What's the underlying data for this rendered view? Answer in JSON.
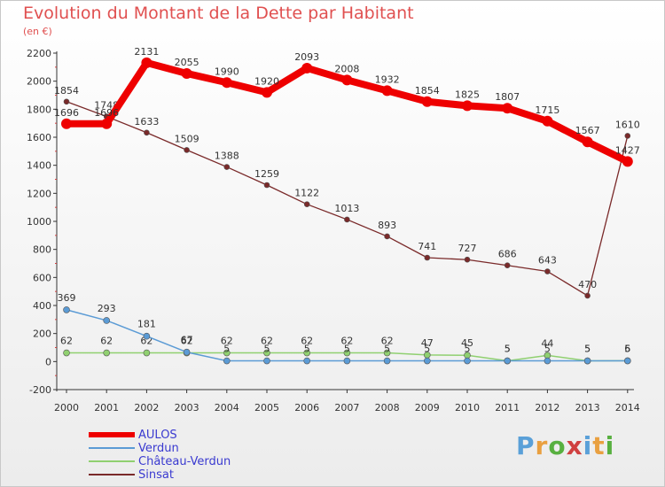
{
  "header": {
    "title": "Evolution du Montant de la Dette par Habitant",
    "subtitle": "(en €)"
  },
  "logo": {
    "text": "Proxiti",
    "colors": [
      "#5aa0d8",
      "#e9a040",
      "#58b040",
      "#d04040",
      "#5aa0d8",
      "#e9a040",
      "#58b040"
    ]
  },
  "chart_data": {
    "type": "line",
    "x": [
      "2000",
      "2001",
      "2002",
      "2003",
      "2004",
      "2005",
      "2006",
      "2007",
      "2008",
      "2009",
      "2010",
      "2011",
      "2012",
      "2013",
      "2014"
    ],
    "ylim": [
      -200,
      2200
    ],
    "yticks": [
      "-200",
      "0",
      "200",
      "400",
      "600",
      "800",
      "1000",
      "1200",
      "1400",
      "1600",
      "1800",
      "2000",
      "2200"
    ],
    "legend_position": "bottom-left",
    "grid": false,
    "series": [
      {
        "name": "AULOS",
        "color": "#ee0000",
        "values": [
          1696,
          1696,
          2131,
          2055,
          1990,
          1920,
          2093,
          2008,
          1932,
          1854,
          1825,
          1807,
          1715,
          1567,
          1427
        ],
        "labels": [
          "1696",
          "1696",
          "2131",
          "2055",
          "1990",
          "1920",
          "2093",
          "2008",
          "1932",
          "1854",
          "1825",
          "1807",
          "1715",
          "1567",
          "1427"
        ]
      },
      {
        "name": "Verdun",
        "color": "#5b9bd5",
        "values": [
          369,
          293,
          181,
          67,
          5,
          5,
          5,
          5,
          5,
          5,
          5,
          5,
          5,
          5,
          5
        ],
        "labels": [
          "369",
          "293",
          "181",
          "67",
          "5",
          "5",
          "5",
          "5",
          "5",
          "5",
          "5",
          "5",
          "5",
          "5",
          "5"
        ]
      },
      {
        "name": "Château-Verdun",
        "color": "#90d070",
        "values": [
          62,
          62,
          62,
          62,
          62,
          62,
          62,
          62,
          62,
          47,
          45,
          5,
          44,
          5,
          6
        ],
        "labels": [
          "62",
          "62",
          "62",
          "62",
          "62",
          "62",
          "62",
          "62",
          "62",
          "47",
          "45",
          "5",
          "44",
          "5",
          "6"
        ]
      },
      {
        "name": "Sinsat",
        "color": "#7a2a2a",
        "values": [
          1854,
          1748,
          1633,
          1509,
          1388,
          1259,
          1122,
          1013,
          893,
          741,
          727,
          686,
          643,
          470,
          1610
        ],
        "labels": [
          "1854",
          "1748",
          "1633",
          "1509",
          "1388",
          "1259",
          "1122",
          "1013",
          "893",
          "741",
          "727",
          "686",
          "643",
          "470",
          "1610"
        ]
      }
    ]
  }
}
